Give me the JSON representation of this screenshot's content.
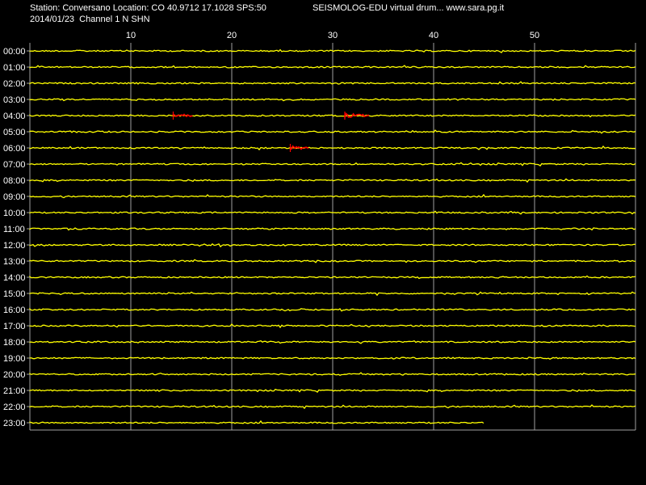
{
  "header": {
    "station_line": "Station: Conversano Location: CO 40.9712 17.1028 SPS:50",
    "title": "SEISMOLOG-EDU virtual drum... www.sara.pg.it",
    "date_channel": "2014/01/23  Channel 1 N SHN"
  },
  "colors": {
    "background": "#000000",
    "trace": "#ffff00",
    "event": "#ff0000",
    "grid": "#a0a0a0",
    "text": "#ffffff"
  },
  "chart_data": {
    "type": "line",
    "title": "SEISMOLOG-EDU virtual drum... www.sara.pg.it",
    "xlabel": "",
    "ylabel": "",
    "xlim": [
      0,
      60
    ],
    "x_ticks": [
      10,
      20,
      30,
      40,
      50
    ],
    "grid": true,
    "rows": [
      "00:00",
      "01:00",
      "02:00",
      "03:00",
      "04:00",
      "05:00",
      "06:00",
      "07:00",
      "08:00",
      "09:00",
      "10:00",
      "11:00",
      "12:00",
      "13:00",
      "14:00",
      "15:00",
      "16:00",
      "17:00",
      "18:00",
      "19:00",
      "20:00",
      "21:00",
      "22:00",
      "23:00"
    ],
    "last_row_end_minute": 45,
    "events": [
      {
        "row": "04:00",
        "start": 14.2,
        "end": 16.2
      },
      {
        "row": "04:00",
        "start": 31.2,
        "end": 33.7
      },
      {
        "row": "06:00",
        "start": 25.8,
        "end": 27.6
      }
    ]
  }
}
